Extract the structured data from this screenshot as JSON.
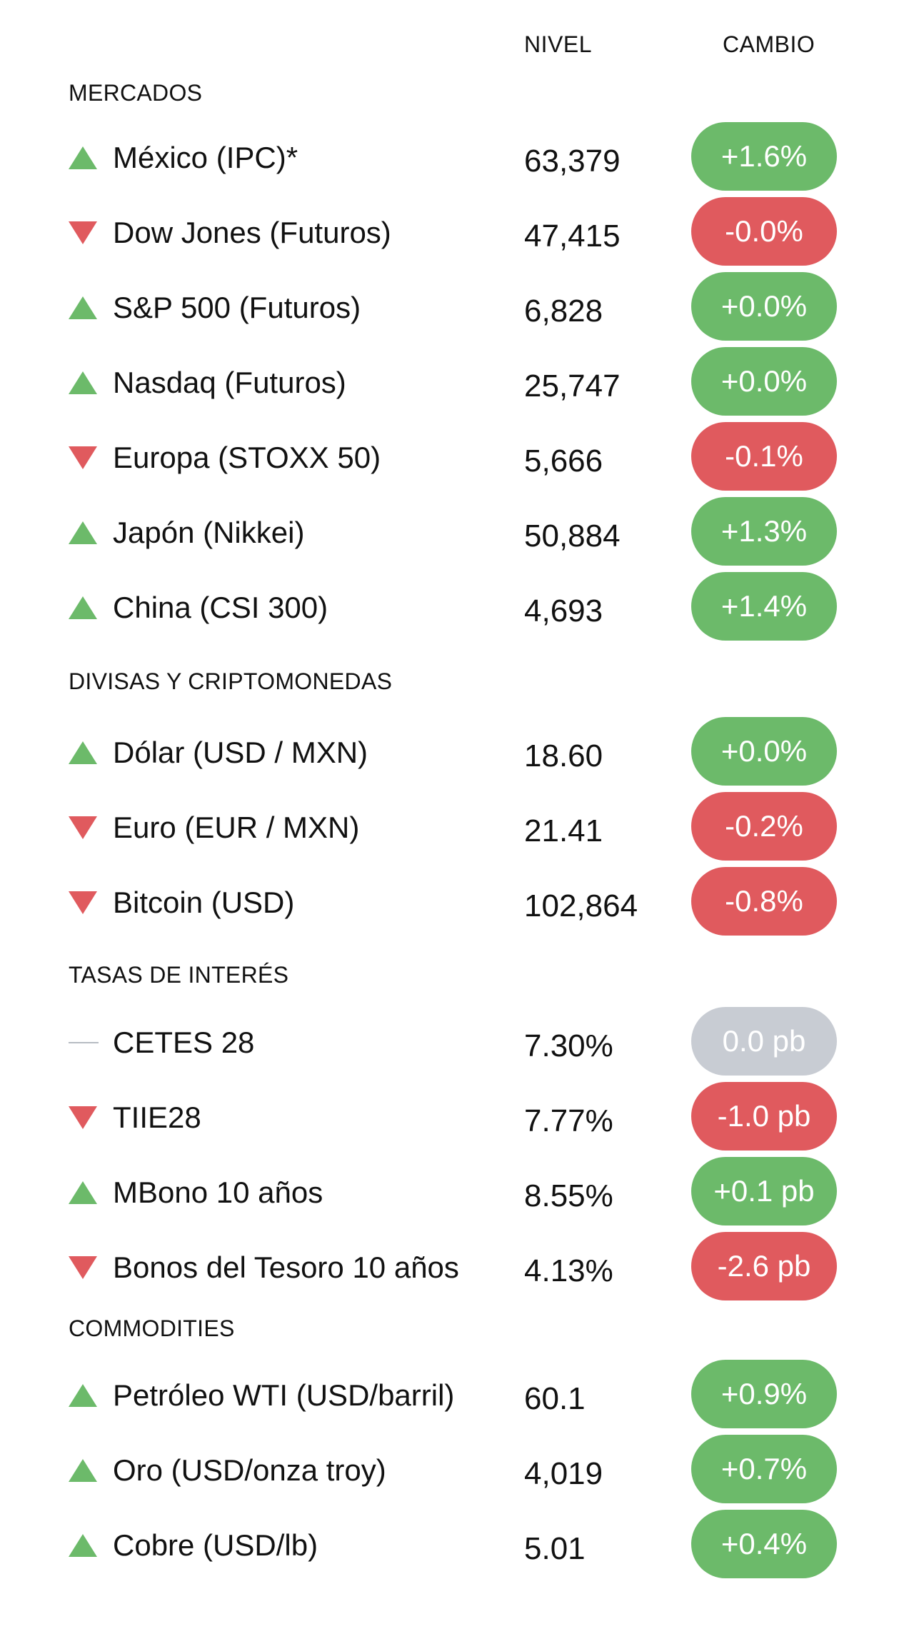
{
  "columns": {
    "level": "NIVEL",
    "change": "CAMBIO"
  },
  "colors": {
    "up": "#6cba6a",
    "down": "#e05a5e",
    "flat": "#c8ccd3"
  },
  "sections": [
    {
      "title": "MERCADOS",
      "rows": [
        {
          "name": "México (IPC)*",
          "level": "63,379",
          "change": "+1.6%",
          "direction": "up"
        },
        {
          "name": "Dow Jones (Futuros)",
          "level": "47,415",
          "change": "-0.0%",
          "direction": "down"
        },
        {
          "name": "S&P 500 (Futuros)",
          "level": "6,828",
          "change": "+0.0%",
          "direction": "up"
        },
        {
          "name": "Nasdaq  (Futuros)",
          "level": "25,747",
          "change": "+0.0%",
          "direction": "up"
        },
        {
          "name": "Europa (STOXX 50)",
          "level": "5,666",
          "change": "-0.1%",
          "direction": "down"
        },
        {
          "name": "Japón (Nikkei)",
          "level": "50,884",
          "change": "+1.3%",
          "direction": "up"
        },
        {
          "name": "China (CSI 300)",
          "level": "4,693",
          "change": "+1.4%",
          "direction": "up"
        }
      ]
    },
    {
      "title": "DIVISAS Y CRIPTOMONEDAS",
      "rows": [
        {
          "name": "Dólar (USD / MXN)",
          "level": "18.60",
          "change": "+0.0%",
          "direction": "up"
        },
        {
          "name": "Euro (EUR / MXN)",
          "level": "21.41",
          "change": "-0.2%",
          "direction": "down"
        },
        {
          "name": "Bitcoin (USD)",
          "level": "102,864",
          "change": "-0.8%",
          "direction": "down"
        }
      ]
    },
    {
      "title": "TASAS DE INTERÉS",
      "rows": [
        {
          "name": "CETES 28",
          "level": "7.30%",
          "change": "0.0 pb",
          "direction": "flat"
        },
        {
          "name": "TIIE28",
          "level": "7.77%",
          "change": "-1.0 pb",
          "direction": "down"
        },
        {
          "name": "MBono 10 años",
          "level": "8.55%",
          "change": "+0.1 pb",
          "direction": "up"
        },
        {
          "name": "Bonos del Tesoro 10 años",
          "level": "4.13%",
          "change": "-2.6 pb",
          "direction": "down"
        }
      ]
    },
    {
      "title": "COMMODITIES",
      "rows": [
        {
          "name": "Petróleo WTI (USD/barril)",
          "level": "60.1",
          "change": "+0.9%",
          "direction": "up"
        },
        {
          "name": "Oro (USD/onza troy)",
          "level": "4,019",
          "change": "+0.7%",
          "direction": "up"
        },
        {
          "name": "Cobre (USD/lb)",
          "level": "5.01",
          "change": "+0.4%",
          "direction": "up"
        }
      ]
    }
  ]
}
